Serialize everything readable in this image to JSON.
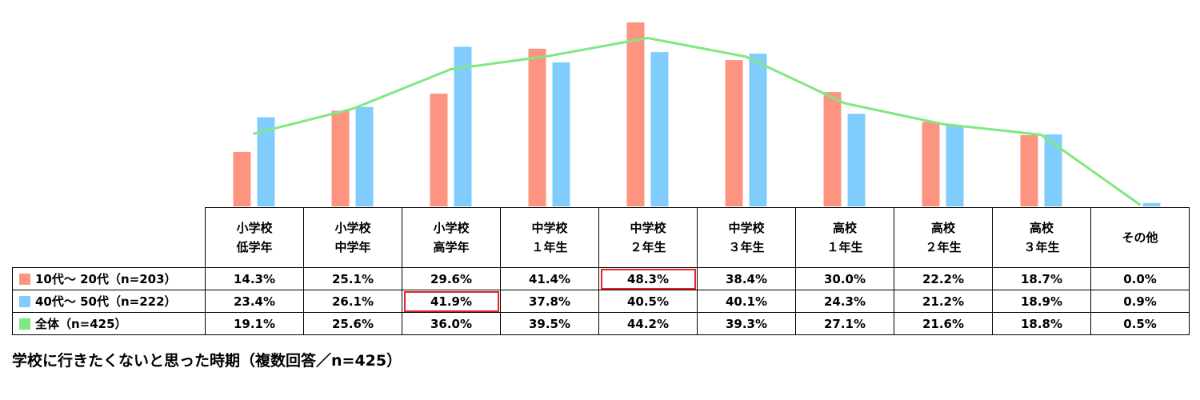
{
  "colors": {
    "series1": "#fc9480",
    "series2": "#80ccfc",
    "total": "#80e880",
    "highlight": "#e3232c"
  },
  "caption": "学校に行きたくないと思った時期（複数回答／n=425）",
  "chart_data": {
    "type": "bar",
    "categories": [
      [
        "小学校",
        "低学年"
      ],
      [
        "小学校",
        "中学年"
      ],
      [
        "小学校",
        "高学年"
      ],
      [
        "中学校",
        "１年生"
      ],
      [
        "中学校",
        "２年生"
      ],
      [
        "中学校",
        "３年生"
      ],
      [
        "高校",
        "１年生"
      ],
      [
        "高校",
        "２年生"
      ],
      [
        "高校",
        "３年生"
      ],
      [
        "その他"
      ]
    ],
    "series": [
      {
        "name": "10代～ 20代（n=203）",
        "kind": "bar",
        "color": "#fc9480",
        "values": [
          14.3,
          25.1,
          29.6,
          41.4,
          48.3,
          38.4,
          30.0,
          22.2,
          18.7,
          0.0
        ],
        "labels": [
          "14.3%",
          "25.1%",
          "29.6%",
          "41.4%",
          "48.3%",
          "38.4%",
          "30.0%",
          "22.2%",
          "18.7%",
          "0.0%"
        ],
        "highlighted_index": 4
      },
      {
        "name": "40代～ 50代（n=222）",
        "kind": "bar",
        "color": "#80ccfc",
        "values": [
          23.4,
          26.1,
          41.9,
          37.8,
          40.5,
          40.1,
          24.3,
          21.2,
          18.9,
          0.9
        ],
        "labels": [
          "23.4%",
          "26.1%",
          "41.9%",
          "37.8%",
          "40.5%",
          "40.1%",
          "24.3%",
          "21.2%",
          "18.9%",
          "0.9%"
        ],
        "highlighted_index": 2
      },
      {
        "name": "全体（n=425）",
        "kind": "line",
        "color": "#80e880",
        "values": [
          19.1,
          25.6,
          36.0,
          39.5,
          44.2,
          39.3,
          27.1,
          21.6,
          18.8,
          0.5
        ],
        "labels": [
          "19.1%",
          "25.6%",
          "36.0%",
          "39.5%",
          "44.2%",
          "39.3%",
          "27.1%",
          "21.6%",
          "18.8%",
          "0.5%"
        ]
      }
    ],
    "ylim": [
      0,
      48.3
    ],
    "grid": false,
    "legend": "table-left"
  }
}
